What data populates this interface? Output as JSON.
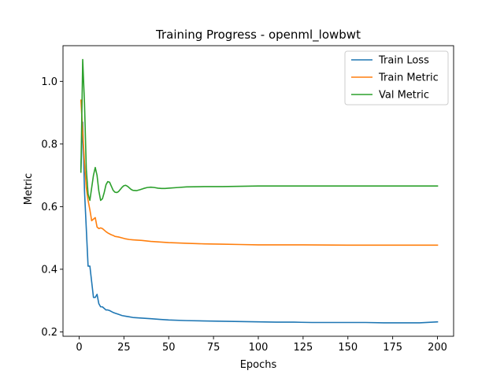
{
  "chart_data": {
    "type": "line",
    "title": "Training Progress - openml_lowbwt",
    "xlabel": "Epochs",
    "ylabel": "Metric",
    "xlim": [
      -9,
      209
    ],
    "ylim": [
      0.186,
      1.114
    ],
    "x_ticks": [
      0,
      25,
      50,
      75,
      100,
      125,
      150,
      175,
      200
    ],
    "y_ticks": [
      0.2,
      0.4,
      0.6,
      0.8,
      1.0
    ],
    "y_tick_labels": [
      "0.2",
      "0.4",
      "0.6",
      "0.8",
      "1.0"
    ],
    "grid": false,
    "legend_position": "top-right",
    "series": [
      {
        "name": "Train Loss",
        "color": "#1f77b4",
        "x": [
          1,
          2,
          3,
          4,
          5,
          6,
          7,
          8,
          9,
          10,
          11,
          12,
          13,
          14,
          15,
          16,
          17,
          18,
          19,
          20,
          22,
          24,
          26,
          28,
          30,
          35,
          40,
          45,
          50,
          60,
          70,
          80,
          90,
          100,
          110,
          120,
          130,
          140,
          150,
          160,
          170,
          180,
          190,
          200
        ],
        "y": [
          0.72,
          0.87,
          0.65,
          0.53,
          0.41,
          0.41,
          0.36,
          0.31,
          0.31,
          0.32,
          0.29,
          0.28,
          0.28,
          0.275,
          0.27,
          0.27,
          0.268,
          0.265,
          0.262,
          0.26,
          0.256,
          0.252,
          0.25,
          0.248,
          0.246,
          0.244,
          0.242,
          0.24,
          0.238,
          0.236,
          0.235,
          0.234,
          0.233,
          0.232,
          0.231,
          0.231,
          0.23,
          0.23,
          0.23,
          0.23,
          0.229,
          0.229,
          0.229,
          0.232
        ]
      },
      {
        "name": "Train Metric",
        "color": "#ff7f0e",
        "x": [
          1,
          2,
          3,
          4,
          5,
          6,
          7,
          8,
          9,
          10,
          11,
          12,
          13,
          14,
          15,
          16,
          17,
          18,
          19,
          20,
          22,
          24,
          26,
          28,
          30,
          35,
          40,
          45,
          50,
          60,
          70,
          80,
          90,
          100,
          125,
          150,
          175,
          200
        ],
        "y": [
          0.94,
          0.84,
          0.74,
          0.66,
          0.62,
          0.59,
          0.555,
          0.56,
          0.565,
          0.535,
          0.53,
          0.532,
          0.53,
          0.525,
          0.52,
          0.516,
          0.513,
          0.51,
          0.508,
          0.505,
          0.503,
          0.5,
          0.497,
          0.495,
          0.494,
          0.492,
          0.489,
          0.487,
          0.485,
          0.483,
          0.481,
          0.48,
          0.479,
          0.478,
          0.478,
          0.477,
          0.477,
          0.477
        ]
      },
      {
        "name": "Val Metric",
        "color": "#2ca02c",
        "x": [
          1,
          2,
          3,
          4,
          5,
          6,
          7,
          8,
          9,
          10,
          11,
          12,
          13,
          14,
          15,
          16,
          17,
          18,
          19,
          20,
          21,
          22,
          23,
          24,
          25,
          26,
          27,
          28,
          29,
          30,
          32,
          34,
          36,
          38,
          40,
          42,
          44,
          46,
          48,
          50,
          55,
          60,
          70,
          80,
          90,
          100,
          125,
          150,
          175,
          200
        ],
        "y": [
          0.71,
          1.07,
          0.93,
          0.72,
          0.64,
          0.62,
          0.66,
          0.7,
          0.725,
          0.7,
          0.65,
          0.62,
          0.625,
          0.645,
          0.67,
          0.68,
          0.678,
          0.665,
          0.652,
          0.646,
          0.645,
          0.648,
          0.655,
          0.662,
          0.667,
          0.668,
          0.665,
          0.66,
          0.655,
          0.652,
          0.651,
          0.654,
          0.658,
          0.661,
          0.662,
          0.661,
          0.659,
          0.658,
          0.658,
          0.659,
          0.661,
          0.663,
          0.664,
          0.664,
          0.665,
          0.666,
          0.666,
          0.666,
          0.666,
          0.666
        ]
      }
    ]
  }
}
